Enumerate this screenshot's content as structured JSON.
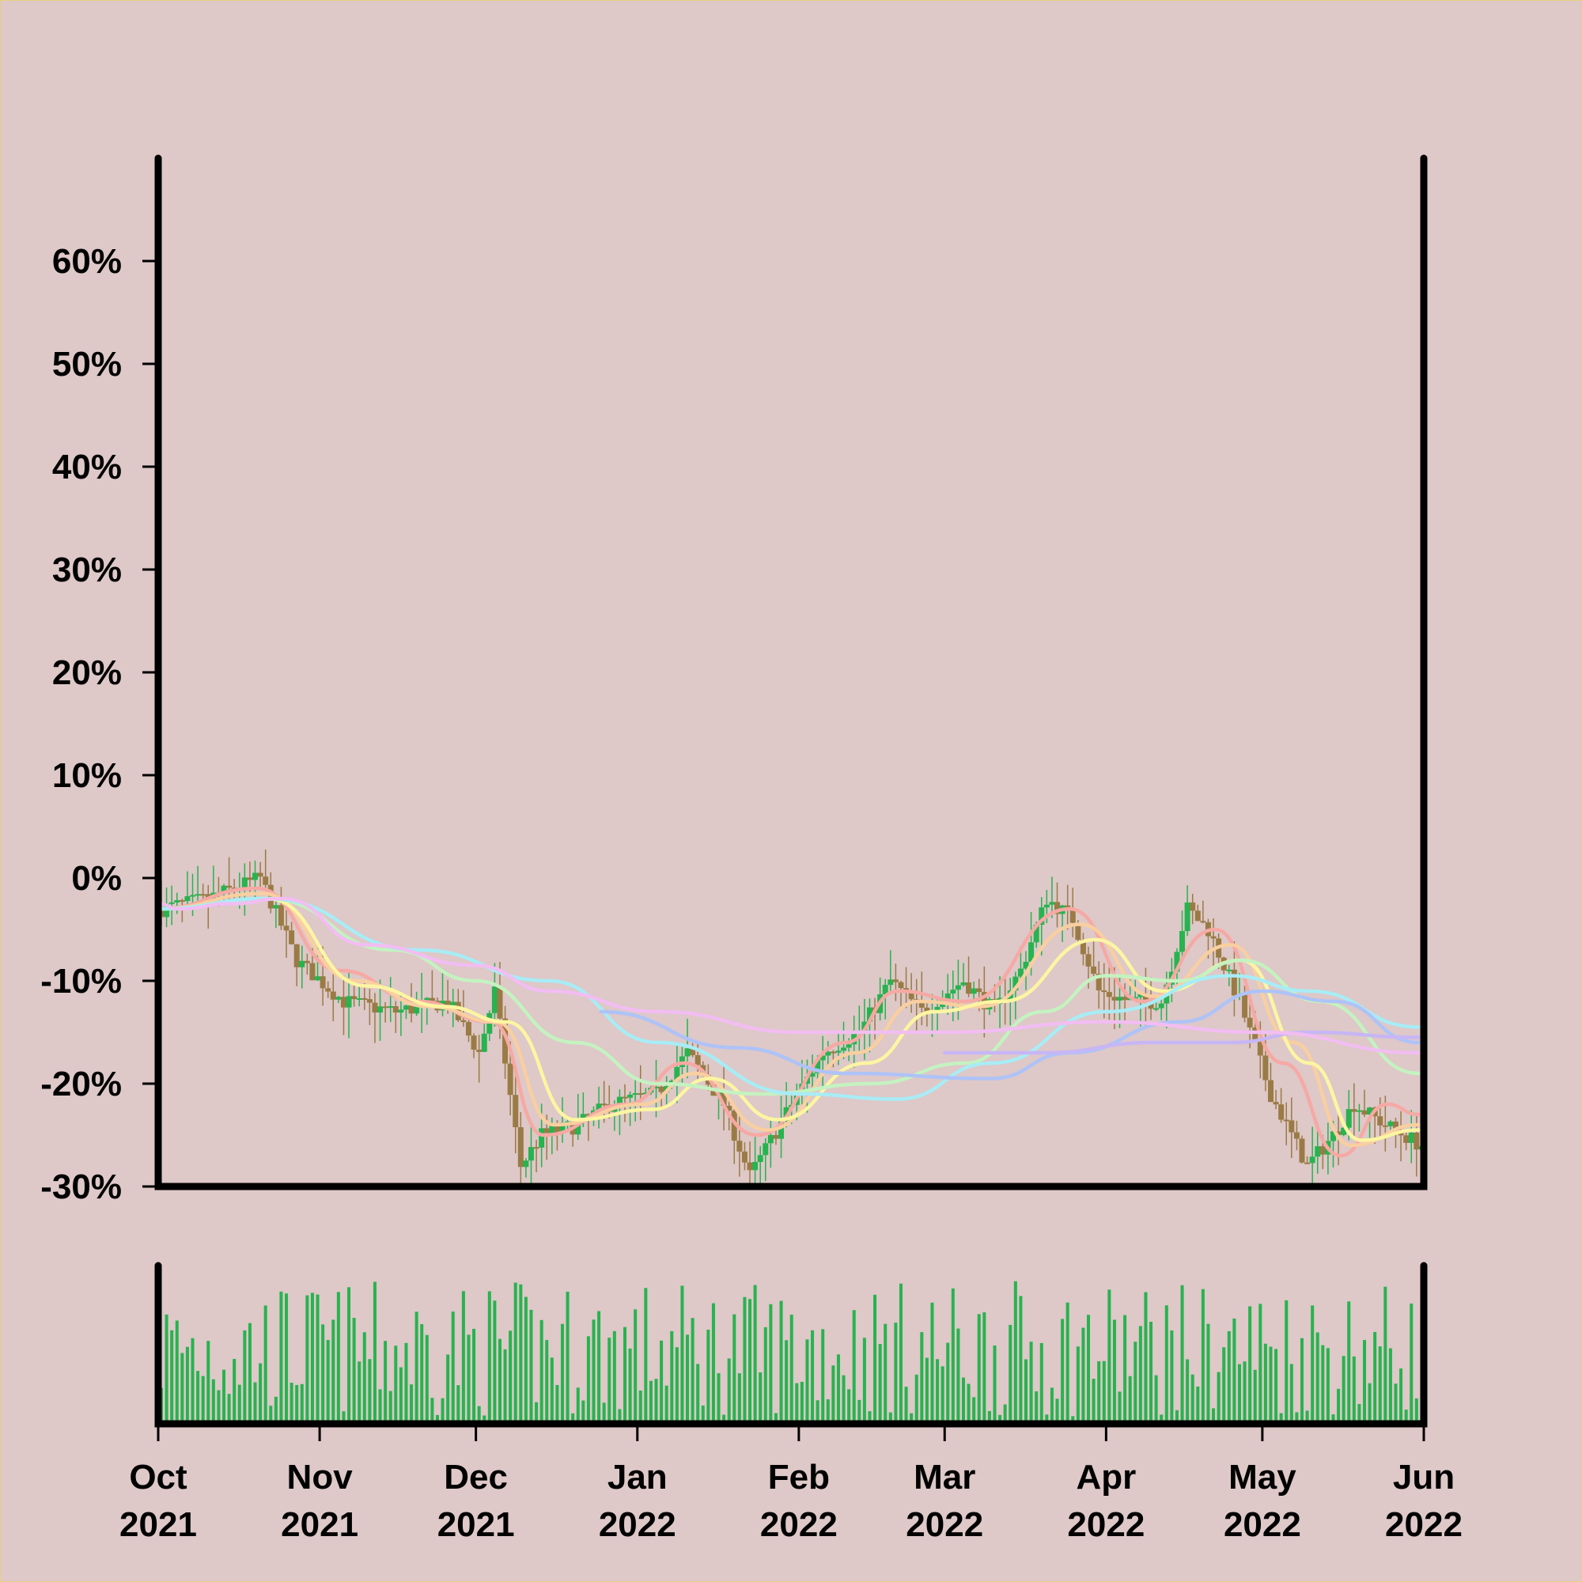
{
  "chart_data": {
    "type": "candlestick",
    "panels": [
      "price",
      "volume"
    ],
    "x_range": [
      "2021-10-01",
      "2022-06-01"
    ],
    "ylim": [
      -30,
      70
    ],
    "y_ticks": [
      {
        "value": 60,
        "label": "60%"
      },
      {
        "value": 50,
        "label": "50%"
      },
      {
        "value": 40,
        "label": "40%"
      },
      {
        "value": 30,
        "label": "30%"
      },
      {
        "value": 20,
        "label": "20%"
      },
      {
        "value": 10,
        "label": "10%"
      },
      {
        "value": 0,
        "label": "0%"
      },
      {
        "value": -10,
        "label": "-10%"
      },
      {
        "value": -20,
        "label": "-20%"
      },
      {
        "value": -30,
        "label": "-30%"
      }
    ],
    "x_ticks": [
      {
        "date": "2021-10-01",
        "label": [
          "Oct",
          "2021"
        ]
      },
      {
        "date": "2021-11-01",
        "label": [
          "Nov",
          "2021"
        ]
      },
      {
        "date": "2021-12-01",
        "label": [
          "Dec",
          "2021"
        ]
      },
      {
        "date": "2022-01-01",
        "label": [
          "Jan",
          "2022"
        ]
      },
      {
        "date": "2022-02-01",
        "label": [
          "Feb",
          "2022"
        ]
      },
      {
        "date": "2022-03-01",
        "label": [
          "Mar",
          "2022"
        ]
      },
      {
        "date": "2022-04-01",
        "label": [
          "Apr",
          "2022"
        ]
      },
      {
        "date": "2022-05-01",
        "label": [
          "May",
          "2022"
        ]
      },
      {
        "date": "2022-06-01",
        "label": [
          "Jun",
          "2022"
        ]
      }
    ],
    "price_close_pct": [
      {
        "date": "2021-10-01",
        "value": -3
      },
      {
        "date": "2021-10-10",
        "value": -2
      },
      {
        "date": "2021-10-20",
        "value": 0
      },
      {
        "date": "2021-10-27",
        "value": -8
      },
      {
        "date": "2021-11-05",
        "value": -12
      },
      {
        "date": "2021-11-15",
        "value": -13
      },
      {
        "date": "2021-11-25",
        "value": -12
      },
      {
        "date": "2021-12-01",
        "value": -17
      },
      {
        "date": "2021-12-04",
        "value": -11
      },
      {
        "date": "2021-12-09",
        "value": -28
      },
      {
        "date": "2021-12-13",
        "value": -25
      },
      {
        "date": "2021-12-20",
        "value": -24
      },
      {
        "date": "2021-12-26",
        "value": -22
      },
      {
        "date": "2022-01-04",
        "value": -21
      },
      {
        "date": "2022-01-10",
        "value": -17
      },
      {
        "date": "2022-01-17",
        "value": -22
      },
      {
        "date": "2022-01-22",
        "value": -29
      },
      {
        "date": "2022-01-30",
        "value": -22
      },
      {
        "date": "2022-02-05",
        "value": -17
      },
      {
        "date": "2022-02-12",
        "value": -15
      },
      {
        "date": "2022-02-18",
        "value": -10
      },
      {
        "date": "2022-02-24",
        "value": -13
      },
      {
        "date": "2022-03-04",
        "value": -10
      },
      {
        "date": "2022-03-10",
        "value": -13
      },
      {
        "date": "2022-03-15",
        "value": -9
      },
      {
        "date": "2022-03-20",
        "value": -2
      },
      {
        "date": "2022-03-25",
        "value": -4
      },
      {
        "date": "2022-03-30",
        "value": -11
      },
      {
        "date": "2022-04-05",
        "value": -12
      },
      {
        "date": "2022-04-11",
        "value": -12
      },
      {
        "date": "2022-04-16",
        "value": -3
      },
      {
        "date": "2022-04-20",
        "value": -5
      },
      {
        "date": "2022-04-26",
        "value": -12
      },
      {
        "date": "2022-05-02",
        "value": -21
      },
      {
        "date": "2022-05-09",
        "value": -28
      },
      {
        "date": "2022-05-14",
        "value": -25
      },
      {
        "date": "2022-05-18",
        "value": -22
      },
      {
        "date": "2022-05-24",
        "value": -24
      },
      {
        "date": "2022-05-31",
        "value": -26
      }
    ],
    "moving_averages": [
      {
        "color": "#f6a9a4",
        "values": [
          {
            "date": "2021-10-01",
            "value": -3
          },
          {
            "date": "2021-10-20",
            "value": -1
          },
          {
            "date": "2021-11-05",
            "value": -9
          },
          {
            "date": "2021-11-20",
            "value": -12
          },
          {
            "date": "2021-12-04",
            "value": -14
          },
          {
            "date": "2021-12-14",
            "value": -25
          },
          {
            "date": "2021-12-30",
            "value": -22
          },
          {
            "date": "2022-01-10",
            "value": -18
          },
          {
            "date": "2022-01-24",
            "value": -25
          },
          {
            "date": "2022-02-10",
            "value": -16
          },
          {
            "date": "2022-02-20",
            "value": -11
          },
          {
            "date": "2022-03-05",
            "value": -12
          },
          {
            "date": "2022-03-25",
            "value": -3
          },
          {
            "date": "2022-04-08",
            "value": -12
          },
          {
            "date": "2022-04-22",
            "value": -5
          },
          {
            "date": "2022-05-05",
            "value": -18
          },
          {
            "date": "2022-05-16",
            "value": -27
          },
          {
            "date": "2022-05-25",
            "value": -22
          },
          {
            "date": "2022-05-31",
            "value": -23
          }
        ]
      },
      {
        "color": "#f9cfa0",
        "values": [
          {
            "date": "2021-10-01",
            "value": -3
          },
          {
            "date": "2021-10-21",
            "value": -1.5
          },
          {
            "date": "2021-11-08",
            "value": -10
          },
          {
            "date": "2021-11-22",
            "value": -12.5
          },
          {
            "date": "2021-12-05",
            "value": -14
          },
          {
            "date": "2021-12-16",
            "value": -24
          },
          {
            "date": "2022-01-02",
            "value": -22
          },
          {
            "date": "2022-01-12",
            "value": -19
          },
          {
            "date": "2022-01-26",
            "value": -24.5
          },
          {
            "date": "2022-02-12",
            "value": -17
          },
          {
            "date": "2022-02-24",
            "value": -12
          },
          {
            "date": "2022-03-08",
            "value": -12.5
          },
          {
            "date": "2022-03-27",
            "value": -4.5
          },
          {
            "date": "2022-04-10",
            "value": -11.5
          },
          {
            "date": "2022-04-25",
            "value": -6.5
          },
          {
            "date": "2022-05-07",
            "value": -16
          },
          {
            "date": "2022-05-18",
            "value": -26
          },
          {
            "date": "2022-05-31",
            "value": -24
          }
        ]
      },
      {
        "color": "#fcf5a2",
        "values": [
          {
            "date": "2021-10-01",
            "value": -3
          },
          {
            "date": "2021-10-22",
            "value": -2
          },
          {
            "date": "2021-11-10",
            "value": -10.5
          },
          {
            "date": "2021-11-25",
            "value": -12.5
          },
          {
            "date": "2021-12-07",
            "value": -14
          },
          {
            "date": "2021-12-20",
            "value": -23.5
          },
          {
            "date": "2022-01-04",
            "value": -22.5
          },
          {
            "date": "2022-01-15",
            "value": -19.5
          },
          {
            "date": "2022-01-28",
            "value": -23.5
          },
          {
            "date": "2022-02-14",
            "value": -18
          },
          {
            "date": "2022-02-27",
            "value": -13
          },
          {
            "date": "2022-03-12",
            "value": -12
          },
          {
            "date": "2022-03-30",
            "value": -6
          },
          {
            "date": "2022-04-12",
            "value": -11
          },
          {
            "date": "2022-04-27",
            "value": -8
          },
          {
            "date": "2022-05-10",
            "value": -18
          },
          {
            "date": "2022-05-20",
            "value": -25.5
          },
          {
            "date": "2022-05-31",
            "value": -24.5
          }
        ]
      },
      {
        "color": "#c4f2c0",
        "values": [
          {
            "date": "2021-10-01",
            "value": -3
          },
          {
            "date": "2021-10-22",
            "value": -2
          },
          {
            "date": "2021-11-15",
            "value": -7
          },
          {
            "date": "2021-12-01",
            "value": -10
          },
          {
            "date": "2021-12-20",
            "value": -16
          },
          {
            "date": "2022-01-05",
            "value": -20
          },
          {
            "date": "2022-01-25",
            "value": -21
          },
          {
            "date": "2022-02-15",
            "value": -20
          },
          {
            "date": "2022-03-05",
            "value": -18
          },
          {
            "date": "2022-03-20",
            "value": -13
          },
          {
            "date": "2022-04-01",
            "value": -9.5
          },
          {
            "date": "2022-04-15",
            "value": -10
          },
          {
            "date": "2022-04-27",
            "value": -8
          },
          {
            "date": "2022-05-12",
            "value": -12
          },
          {
            "date": "2022-05-31",
            "value": -19
          }
        ]
      },
      {
        "color": "#a8ecf5",
        "values": [
          {
            "date": "2021-10-01",
            "value": -3
          },
          {
            "date": "2021-10-22",
            "value": -2
          },
          {
            "date": "2021-11-20",
            "value": -7
          },
          {
            "date": "2021-12-15",
            "value": -10
          },
          {
            "date": "2022-01-05",
            "value": -16
          },
          {
            "date": "2022-02-01",
            "value": -21
          },
          {
            "date": "2022-02-20",
            "value": -21.5
          },
          {
            "date": "2022-03-10",
            "value": -18
          },
          {
            "date": "2022-04-01",
            "value": -13
          },
          {
            "date": "2022-04-25",
            "value": -9.5
          },
          {
            "date": "2022-05-10",
            "value": -11
          },
          {
            "date": "2022-05-31",
            "value": -14.5
          }
        ]
      },
      {
        "color": "#aec3f7",
        "values": [
          {
            "date": "2021-12-25",
            "value": -13
          },
          {
            "date": "2022-01-20",
            "value": -16.5
          },
          {
            "date": "2022-02-10",
            "value": -19
          },
          {
            "date": "2022-03-10",
            "value": -19.5
          },
          {
            "date": "2022-03-25",
            "value": -17
          },
          {
            "date": "2022-04-15",
            "value": -14
          },
          {
            "date": "2022-05-01",
            "value": -11
          },
          {
            "date": "2022-05-15",
            "value": -12
          },
          {
            "date": "2022-05-31",
            "value": -16
          }
        ]
      },
      {
        "color": "#c7b6f5",
        "values": [
          {
            "date": "2022-03-01",
            "value": -17
          },
          {
            "date": "2022-03-20",
            "value": -17
          },
          {
            "date": "2022-04-10",
            "value": -16
          },
          {
            "date": "2022-04-25",
            "value": -16
          },
          {
            "date": "2022-05-10",
            "value": -15
          },
          {
            "date": "2022-05-31",
            "value": -15.5
          }
        ]
      },
      {
        "color": "#f2bdf2",
        "values": [
          {
            "date": "2021-10-01",
            "value": -2.5
          },
          {
            "date": "2021-10-05",
            "value": -3
          },
          {
            "date": "2021-10-15",
            "value": -2.5
          },
          {
            "date": "2021-10-25",
            "value": -2
          },
          {
            "date": "2021-11-10",
            "value": -6.5
          },
          {
            "date": "2021-12-01",
            "value": -8.5
          },
          {
            "date": "2021-12-15",
            "value": -11
          },
          {
            "date": "2022-01-05",
            "value": -13
          },
          {
            "date": "2022-02-01",
            "value": -15
          },
          {
            "date": "2022-03-01",
            "value": -15
          },
          {
            "date": "2022-04-01",
            "value": -14
          },
          {
            "date": "2022-05-01",
            "value": -15
          },
          {
            "date": "2022-05-31",
            "value": -17
          }
        ]
      }
    ],
    "volume": {
      "color": "#27b34f",
      "relative_range": [
        0.05,
        0.95
      ]
    },
    "colors": {
      "up": "#27b34f",
      "down": "#9a7b45",
      "background": "#dec8c8",
      "border": "#e6cf7a"
    },
    "grid": false,
    "legend": "none"
  }
}
